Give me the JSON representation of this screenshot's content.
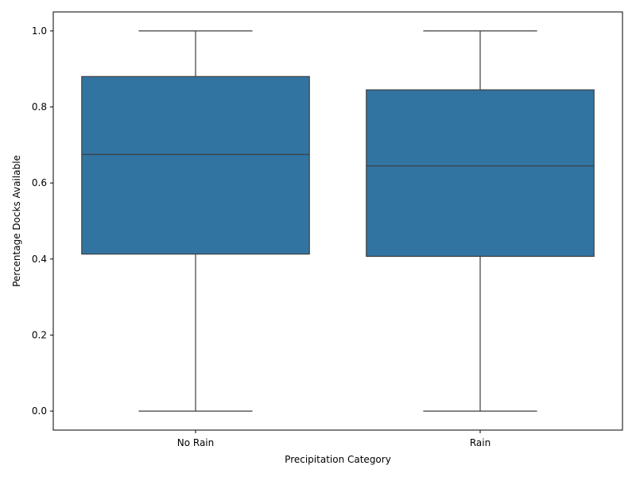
{
  "chart_data": {
    "type": "box",
    "title": "",
    "xlabel": "Precipitation Category",
    "ylabel": "Percentage Docks Available",
    "ylim": [
      -0.05,
      1.05
    ],
    "yticks": [
      0.0,
      0.2,
      0.4,
      0.6,
      0.8,
      1.0
    ],
    "ytick_labels": [
      "0.0",
      "0.2",
      "0.4",
      "0.6",
      "0.8",
      "1.0"
    ],
    "categories": [
      "No Rain",
      "Rain"
    ],
    "boxes": [
      {
        "category": "No Rain",
        "min": 0.0,
        "q1": 0.413,
        "median": 0.675,
        "q3": 0.88,
        "max": 1.0
      },
      {
        "category": "Rain",
        "min": 0.0,
        "q1": 0.407,
        "median": 0.645,
        "q3": 0.845,
        "max": 1.0
      }
    ],
    "box_color": "#3274a1",
    "line_color": "#3d3d3d",
    "grid": false,
    "legend": "none"
  }
}
